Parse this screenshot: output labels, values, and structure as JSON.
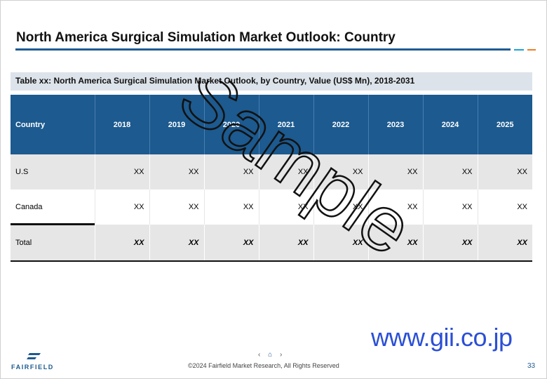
{
  "slide": {
    "title": "North America Surgical Simulation Market Outlook: Country",
    "table_caption": "Table xx: North America Surgical Simulation Market Outlook, by Country, Value (US$ Mn), 2018-2031",
    "watermark": "Sample",
    "site_watermark": "www.gii.co.jp"
  },
  "table": {
    "headers": [
      "Country",
      "2018",
      "2019",
      "2020",
      "2021",
      "2022",
      "2023",
      "2024",
      "2025"
    ],
    "rows": [
      {
        "label": "U.S",
        "values": [
          "XX",
          "XX",
          "XX",
          "XX",
          "XX",
          "XX",
          "XX",
          "XX"
        ]
      },
      {
        "label": "Canada",
        "values": [
          "XX",
          "XX",
          "XX",
          "XX",
          "XX",
          "XX",
          "XX",
          "XX"
        ]
      },
      {
        "label": "Total",
        "values": [
          "XX",
          "XX",
          "XX",
          "XX",
          "XX",
          "XX",
          "XX",
          "XX"
        ]
      }
    ]
  },
  "footer": {
    "logo_text": "FAIRFIELD",
    "copyright": "©2024 Fairfield Market Research, All Rights Reserved",
    "page_number": "33",
    "nav": {
      "prev": "‹",
      "home": "⌂",
      "next": "›"
    }
  },
  "colors": {
    "header_blue": "#1c5a8f",
    "accent_cyan": "#1aa3d6",
    "accent_orange": "#ef7d22",
    "gii_blue": "#2b4fd6"
  }
}
